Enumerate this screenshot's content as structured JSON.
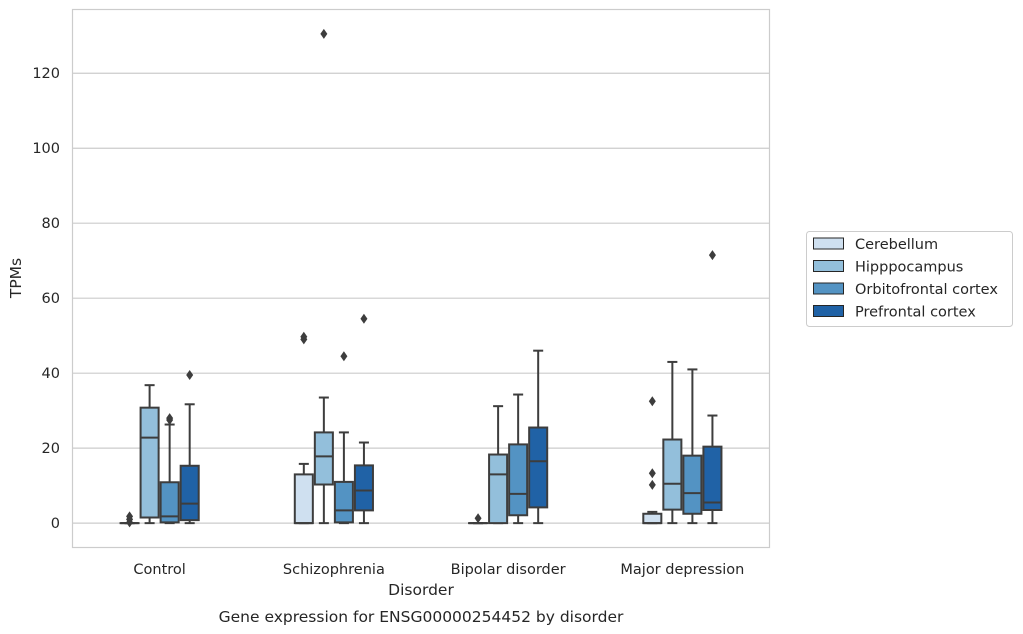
{
  "chart_data": {
    "type": "boxplot",
    "title": "",
    "caption": "Gene expression for ENSG00000254452 by disorder",
    "xlabel": "Disorder",
    "ylabel": "TPMs",
    "ylim": [
      -6.5,
      137
    ],
    "yticks": [
      0,
      20,
      40,
      60,
      80,
      100,
      120
    ],
    "grid": "horizontal",
    "legend_position": "right",
    "categories": [
      "Control",
      "Schizophrenia",
      "Bipolar disorder",
      "Major depression"
    ],
    "series": [
      {
        "name": "Cerebellum",
        "color": "#cfe0f0",
        "boxes": [
          {
            "min": 0,
            "q1": 0,
            "median": 0,
            "q3": 0,
            "max": 0,
            "outliers": [
              0.2,
              1.0,
              1.8
            ]
          },
          {
            "min": 0,
            "q1": 0,
            "median": 0,
            "q3": 13,
            "max": 15.8,
            "outliers": [
              49,
              49.7
            ]
          },
          {
            "min": 0,
            "q1": 0,
            "median": 0,
            "q3": 0,
            "max": 0,
            "outliers": [
              1.3
            ]
          },
          {
            "min": 0,
            "q1": 0,
            "median": 0,
            "q3": 2.5,
            "max": 3,
            "outliers": [
              10.2,
              13.3,
              32.5
            ]
          }
        ]
      },
      {
        "name": "Hipppocampus",
        "color": "#93bfdb",
        "boxes": [
          {
            "min": 0,
            "q1": 1.5,
            "median": 22.8,
            "q3": 30.8,
            "max": 36.8,
            "outliers": []
          },
          {
            "min": 0,
            "q1": 10.3,
            "median": 17.8,
            "q3": 24.2,
            "max": 33.5,
            "outliers": [
              130.5
            ]
          },
          {
            "min": 0,
            "q1": 0,
            "median": 13,
            "q3": 18.3,
            "max": 31.2,
            "outliers": []
          },
          {
            "min": 0,
            "q1": 3.6,
            "median": 10.5,
            "q3": 22.3,
            "max": 43,
            "outliers": []
          }
        ]
      },
      {
        "name": "Orbitofrontal cortex",
        "color": "#5393c3",
        "boxes": [
          {
            "min": 0,
            "q1": 0.2,
            "median": 1.8,
            "q3": 10.9,
            "max": 26.3,
            "outliers": [
              27.5,
              28
            ]
          },
          {
            "min": 0,
            "q1": 0.2,
            "median": 3.4,
            "q3": 11,
            "max": 24.2,
            "outliers": [
              44.5
            ]
          },
          {
            "min": 0,
            "q1": 2.1,
            "median": 7.8,
            "q3": 21,
            "max": 34.3,
            "outliers": []
          },
          {
            "min": 0,
            "q1": 2.5,
            "median": 8,
            "q3": 18,
            "max": 41,
            "outliers": []
          }
        ]
      },
      {
        "name": "Prefrontal cortex",
        "color": "#2062a6",
        "boxes": [
          {
            "min": 0,
            "q1": 0.8,
            "median": 5.2,
            "q3": 15.3,
            "max": 31.7,
            "outliers": [
              39.5
            ]
          },
          {
            "min": 0,
            "q1": 3.4,
            "median": 8.7,
            "q3": 15.4,
            "max": 21.5,
            "outliers": [
              54.5
            ]
          },
          {
            "min": 0,
            "q1": 4.2,
            "median": 16.5,
            "q3": 25.5,
            "max": 46,
            "outliers": []
          },
          {
            "min": 0,
            "q1": 3.5,
            "median": 5.5,
            "q3": 20.4,
            "max": 28.7,
            "outliers": [
              71.5
            ]
          }
        ]
      }
    ]
  }
}
